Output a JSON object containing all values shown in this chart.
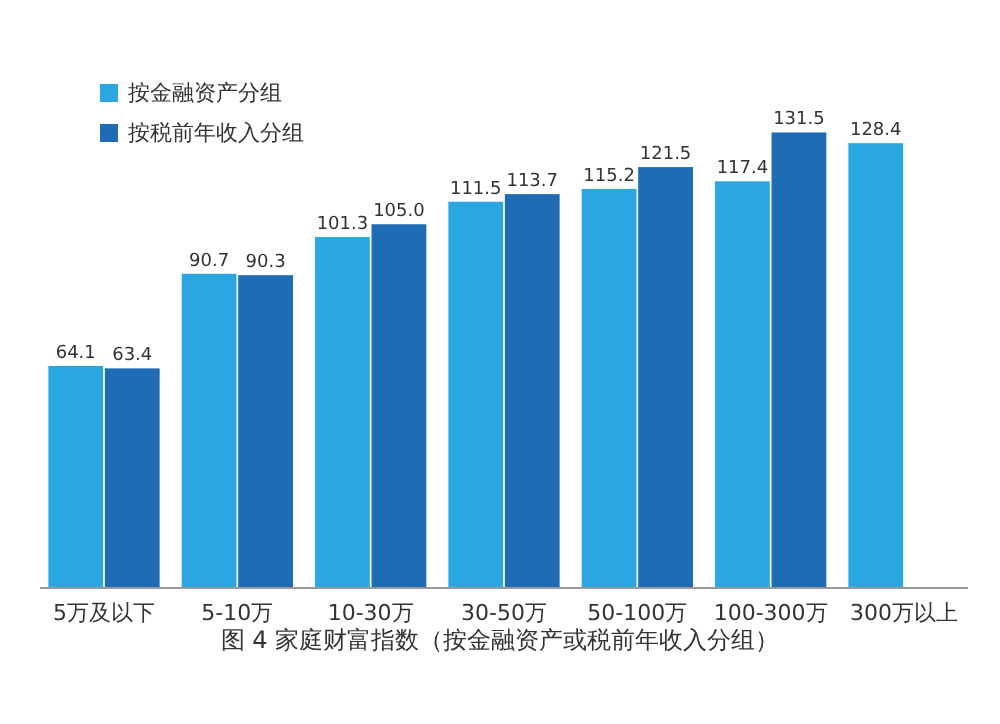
{
  "chart_data": {
    "type": "bar",
    "categories": [
      "5万及以下",
      "5-10万",
      "10-30万",
      "30-50万",
      "50-100万",
      "100-300万",
      "300万以上"
    ],
    "series": [
      {
        "name": "按金融资产分组",
        "color": "#2aa7e1",
        "values": [
          64.1,
          90.7,
          101.3,
          111.5,
          115.2,
          117.4,
          128.4
        ],
        "value_labels": [
          "64.1",
          "90.7",
          "101.3",
          "111.5",
          "115.2",
          "117.4",
          "128.4"
        ]
      },
      {
        "name": "按税前年收入分组",
        "color": "#1f6cb5",
        "values": [
          63.4,
          90.3,
          105.0,
          113.7,
          121.5,
          131.5,
          null
        ],
        "value_labels": [
          "63.4",
          "90.3",
          "105.0",
          "113.7",
          "121.5",
          "131.5",
          null
        ]
      }
    ],
    "legend": "top left",
    "annotations": [
      "图 4 家庭财富指数（按金融资产或税前年收入分组）"
    ]
  }
}
